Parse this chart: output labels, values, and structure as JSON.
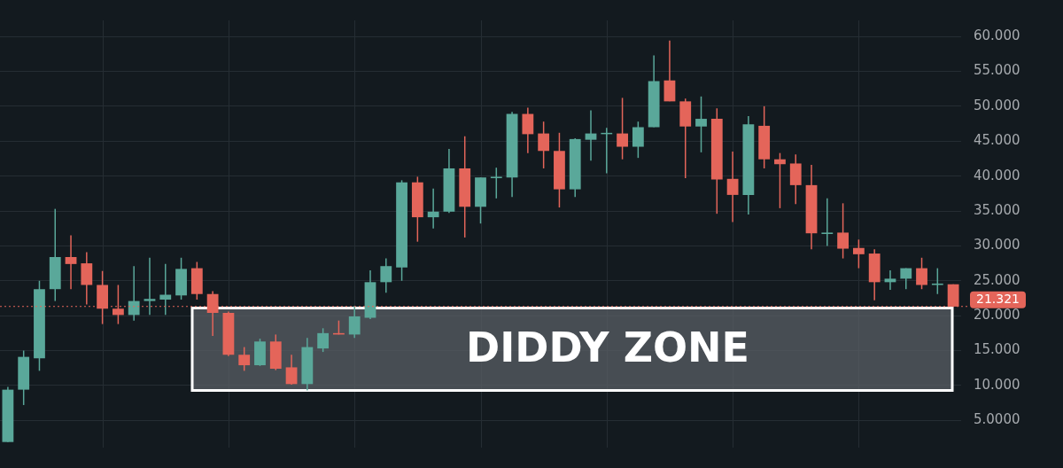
{
  "chart_data": {
    "type": "candlestick",
    "categories": [
      null,
      null,
      null,
      null,
      null,
      null,
      null,
      null,
      null,
      null,
      null,
      null,
      null,
      null,
      null,
      null,
      null,
      null,
      null,
      null,
      null,
      null,
      null,
      null,
      null,
      null,
      null,
      null,
      null,
      null,
      null,
      null,
      null,
      null,
      null,
      null,
      null,
      null,
      null,
      null,
      null,
      null,
      null,
      null,
      null,
      null,
      null,
      null,
      null,
      null,
      null,
      null,
      null,
      null,
      null,
      null,
      null,
      null,
      null,
      null,
      null
    ],
    "ohlc": [
      [
        1.9,
        9.8,
        1.9,
        9.4
      ],
      [
        9.4,
        15.0,
        7.2,
        14.1
      ],
      [
        13.9,
        25.0,
        12.1,
        23.8
      ],
      [
        23.8,
        35.3,
        22.1,
        28.4
      ],
      [
        28.4,
        31.5,
        23.8,
        27.4
      ],
      [
        27.5,
        29.1,
        21.6,
        24.4
      ],
      [
        24.4,
        26.4,
        18.8,
        21.0
      ],
      [
        21.0,
        24.4,
        18.8,
        20.1
      ],
      [
        20.1,
        27.1,
        19.3,
        22.1
      ],
      [
        22.1,
        28.3,
        20.1,
        22.4
      ],
      [
        22.3,
        27.4,
        20.1,
        23.0
      ],
      [
        22.9,
        28.3,
        22.3,
        26.7
      ],
      [
        26.8,
        27.7,
        22.3,
        23.1
      ],
      [
        23.1,
        23.5,
        17.1,
        20.4
      ],
      [
        20.4,
        20.6,
        14.2,
        14.4
      ],
      [
        14.4,
        15.5,
        12.1,
        12.9
      ],
      [
        12.9,
        16.7,
        12.8,
        16.3
      ],
      [
        16.3,
        17.3,
        12.2,
        12.4
      ],
      [
        12.6,
        14.4,
        10.1,
        10.2
      ],
      [
        10.2,
        16.8,
        9.3,
        15.5
      ],
      [
        15.3,
        18.2,
        14.8,
        17.5
      ],
      [
        17.5,
        19.3,
        17.3,
        17.3
      ],
      [
        17.3,
        21.4,
        16.8,
        19.9
      ],
      [
        19.7,
        26.5,
        19.5,
        24.8
      ],
      [
        24.8,
        28.2,
        23.3,
        27.1
      ],
      [
        26.9,
        39.4,
        25.0,
        39.1
      ],
      [
        39.1,
        39.9,
        30.6,
        34.1
      ],
      [
        34.1,
        38.2,
        32.5,
        34.9
      ],
      [
        34.9,
        43.9,
        34.7,
        41.1
      ],
      [
        41.1,
        45.7,
        31.2,
        35.6
      ],
      [
        35.6,
        39.8,
        33.2,
        39.8
      ],
      [
        39.7,
        41.2,
        36.8,
        39.9
      ],
      [
        39.8,
        49.2,
        37.0,
        48.9
      ],
      [
        48.9,
        49.8,
        43.3,
        46.0
      ],
      [
        46.1,
        47.8,
        41.1,
        43.6
      ],
      [
        43.6,
        46.2,
        35.5,
        38.1
      ],
      [
        38.1,
        45.4,
        37.0,
        45.3
      ],
      [
        45.2,
        49.4,
        42.2,
        46.1
      ],
      [
        46.0,
        46.9,
        40.4,
        46.1
      ],
      [
        46.1,
        51.2,
        42.4,
        44.2
      ],
      [
        44.2,
        47.8,
        42.6,
        47.0
      ],
      [
        47.0,
        57.3,
        47.0,
        53.6
      ],
      [
        53.7,
        59.4,
        50.7,
        50.7
      ],
      [
        50.7,
        51.1,
        39.7,
        47.1
      ],
      [
        47.1,
        51.4,
        43.4,
        48.2
      ],
      [
        48.2,
        49.7,
        34.6,
        39.5
      ],
      [
        39.6,
        43.5,
        33.4,
        37.3
      ],
      [
        37.3,
        48.6,
        34.5,
        47.4
      ],
      [
        47.2,
        50.0,
        41.1,
        42.4
      ],
      [
        42.4,
        43.3,
        35.4,
        41.7
      ],
      [
        41.8,
        43.1,
        36.0,
        38.7
      ],
      [
        38.7,
        41.6,
        29.5,
        31.8
      ],
      [
        31.7,
        36.8,
        30.0,
        31.9
      ],
      [
        31.9,
        36.1,
        28.2,
        29.6
      ],
      [
        29.7,
        30.9,
        26.8,
        28.8
      ],
      [
        28.9,
        29.5,
        22.2,
        24.8
      ],
      [
        24.8,
        26.5,
        23.7,
        25.3
      ],
      [
        25.3,
        26.8,
        23.8,
        26.8
      ],
      [
        26.8,
        28.3,
        23.8,
        24.4
      ],
      [
        24.4,
        26.8,
        23.1,
        24.6
      ],
      [
        24.5,
        24.5,
        21.3,
        21.3
      ]
    ],
    "colors": [
      "#5aa89a",
      "#5aa89a",
      "#5aa89a",
      "#5aa89a",
      "#e4655a",
      "#e4655a",
      "#e4655a",
      "#e4655a",
      "#5aa89a",
      "#5aa89a",
      "#5aa89a",
      "#5aa89a",
      "#e4655a",
      "#e4655a",
      "#e4655a",
      "#e4655a",
      "#5aa89a",
      "#e4655a",
      "#e4655a",
      "#5aa89a",
      "#5aa89a",
      "#e4655a",
      "#5aa89a",
      "#5aa89a",
      "#5aa89a",
      "#5aa89a",
      "#e4655a",
      "#5aa89a",
      "#5aa89a",
      "#e4655a",
      "#5aa89a",
      "#5aa89a",
      "#5aa89a",
      "#e4655a",
      "#e4655a",
      "#e4655a",
      "#5aa89a",
      "#5aa89a",
      "#5aa89a",
      "#e4655a",
      "#5aa89a",
      "#5aa89a",
      "#e4655a",
      "#e4655a",
      "#5aa89a",
      "#e4655a",
      "#e4655a",
      "#5aa89a",
      "#e4655a",
      "#e4655a",
      "#e4655a",
      "#e4655a",
      "#5aa89a",
      "#e4655a",
      "#e4655a",
      "#e4655a",
      "#5aa89a",
      "#5aa89a",
      "#e4655a",
      "#5aa89a",
      "#e4655a"
    ],
    "ylim": [
      1.1,
      62.3
    ],
    "yticks": [
      {
        "value": 5,
        "label": "5.0000"
      },
      {
        "value": 10,
        "label": "10.000"
      },
      {
        "value": 15,
        "label": "15.000"
      },
      {
        "value": 20,
        "label": "20.000"
      },
      {
        "value": 25,
        "label": "25.000"
      },
      {
        "value": 30,
        "label": "30.000"
      },
      {
        "value": 35,
        "label": "35.000"
      },
      {
        "value": 40,
        "label": "40.000"
      },
      {
        "value": 45,
        "label": "45.000"
      },
      {
        "value": 50,
        "label": "50.000"
      },
      {
        "value": 55,
        "label": "55.000"
      },
      {
        "value": 60,
        "label": "60.000"
      }
    ],
    "ref_lines": [
      {
        "axis": "y",
        "value": 21.321,
        "label": "21.321",
        "color": "#e4655a",
        "line_style": "dotted"
      }
    ],
    "bands": [
      {
        "axis": "y",
        "from": 9.3,
        "to": 21.1,
        "label": "DIDDY ZONE",
        "color": "#5a5f66"
      }
    ],
    "grid": true,
    "legend": false
  }
}
